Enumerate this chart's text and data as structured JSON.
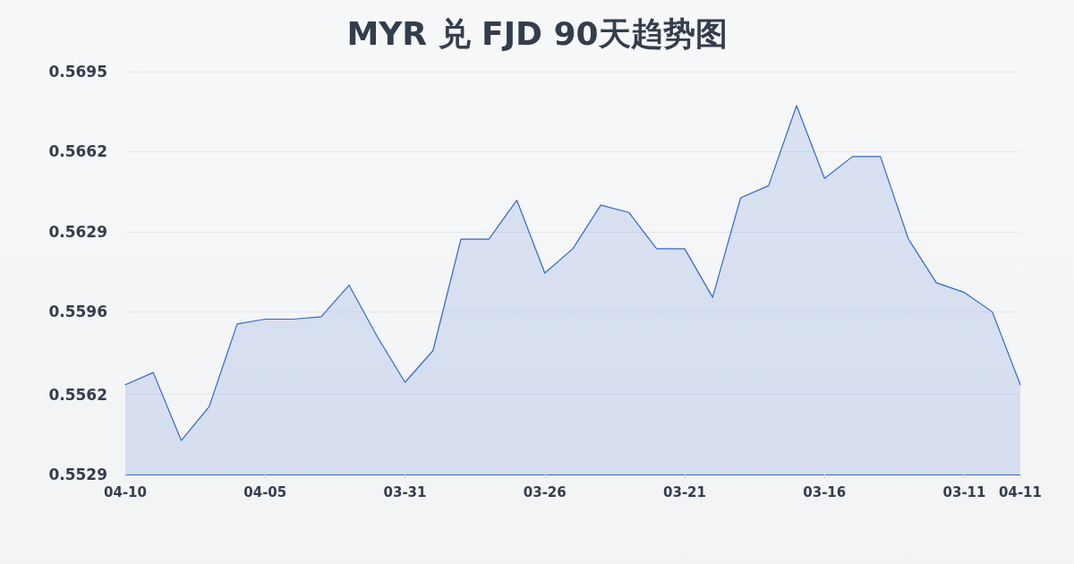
{
  "chart_data": {
    "type": "area",
    "title": "MYR 兑 FJD 90天趋势图",
    "categories": [
      "04-10",
      null,
      null,
      null,
      null,
      "04-05",
      null,
      null,
      null,
      null,
      "03-31",
      null,
      null,
      null,
      null,
      "03-26",
      null,
      null,
      null,
      null,
      "03-21",
      null,
      null,
      null,
      null,
      "03-16",
      null,
      null,
      null,
      null,
      "03-11",
      null,
      "04-11"
    ],
    "values": [
      0.5566,
      0.5571,
      0.5543,
      0.5557,
      0.5591,
      0.5593,
      0.5593,
      0.5594,
      0.5607,
      0.5586,
      0.5567,
      0.558,
      0.5626,
      0.5626,
      0.5642,
      0.5612,
      0.5622,
      0.564,
      0.5637,
      0.5622,
      0.5622,
      0.5602,
      0.5643,
      0.5648,
      0.5681,
      0.5651,
      0.566,
      0.566,
      0.5626,
      0.5608,
      0.5604,
      0.5596,
      0.5566
    ],
    "color": "#3366cc",
    "ylim": [
      0.5529,
      0.5695
    ],
    "yticks": [
      0.5529,
      0.5562,
      0.5596,
      0.5629,
      0.5662,
      0.5695
    ],
    "grid": "y"
  }
}
